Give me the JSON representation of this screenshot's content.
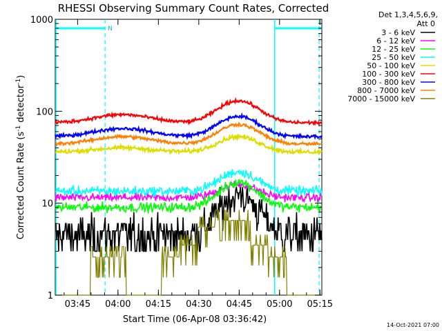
{
  "chart_data": {
    "type": "line",
    "title": "RHESSI Observing Summary Count Rates, Corrected",
    "xlabel": "Start Time (06-Apr-08 03:36:42)",
    "ylabel_main": "Corrected Count Rate (s",
    "ylabel_sup1": "-1",
    "ylabel_mid": " detector",
    "ylabel_sup2": "-1",
    "ylabel_end": ")",
    "yscale": "log",
    "ylim": [
      1,
      1000
    ],
    "xlim_minutes": [
      0,
      99
    ],
    "x_ticks": [
      {
        "label": "03:45",
        "minute": 8.3
      },
      {
        "label": "04:00",
        "minute": 23.3
      },
      {
        "label": "04:15",
        "minute": 38.3
      },
      {
        "label": "04:30",
        "minute": 53.3
      },
      {
        "label": "04:45",
        "minute": 68.3
      },
      {
        "label": "05:00",
        "minute": 83.3
      },
      {
        "label": "05:15",
        "minute": 98.3
      }
    ],
    "y_ticks": [
      {
        "label": "1",
        "value": 1
      },
      {
        "label": "10",
        "value": 10
      },
      {
        "label": "100",
        "value": 100
      },
      {
        "label": "1000",
        "value": 1000
      }
    ],
    "legend_header": [
      "Det 1,3,4,5,6,9,",
      "Att 0"
    ],
    "legend_position": "right",
    "series": [
      {
        "name": "3 - 6 keV",
        "color": "#000000",
        "profile": "flare",
        "base": 4.5,
        "flare_peak": 12,
        "noise": 0.18,
        "quantized": true
      },
      {
        "name": "6 - 12 keV",
        "color": "#ff00ff",
        "profile": "flare",
        "base": 11.5,
        "flare_peak": 16,
        "noise": 0.05
      },
      {
        "name": "12 - 25 keV",
        "color": "#00ff00",
        "profile": "flare",
        "base": 9,
        "flare_peak": 17,
        "noise": 0.06
      },
      {
        "name": "25 - 50 keV",
        "color": "#00ffff",
        "profile": "flare",
        "base": 13.5,
        "flare_peak": 22,
        "noise": 0.06
      },
      {
        "name": "50 - 100 keV",
        "color": "#dddd00",
        "profile": "hump",
        "base": 36,
        "bump1": 40,
        "peak": 53,
        "noise": 0.025
      },
      {
        "name": "100 - 300 keV",
        "color": "#ff0000",
        "profile": "hump",
        "base": 75,
        "bump1": 92,
        "peak": 130,
        "noise": 0.02
      },
      {
        "name": "300 - 800 keV",
        "color": "#0000ff",
        "profile": "hump",
        "base": 53,
        "bump1": 65,
        "peak": 88,
        "noise": 0.02
      },
      {
        "name": "800 - 7000 keV",
        "color": "#ff8000",
        "profile": "hump",
        "base": 44,
        "bump1": 53,
        "peak": 72,
        "noise": 0.02
      },
      {
        "name": "7000 - 15000 keV",
        "color": "#808000",
        "profile": "step",
        "levels": [
          1.0,
          1.0,
          2.6,
          2.6,
          1.0,
          1.0,
          2.6,
          3.5,
          5.5,
          6.5,
          6.5,
          3.5,
          2.6,
          1.0,
          1.0
        ]
      }
    ],
    "annotations": {
      "night_bars": [
        {
          "start_minute": 0,
          "end_minute": 18.5,
          "label": "N"
        },
        {
          "start_minute": 81.5,
          "end_minute": 99,
          "label": ""
        }
      ],
      "dashed_lines_minutes": [
        18.5,
        98
      ],
      "solid_lines_minutes": [
        0,
        81.5
      ]
    },
    "footer_timestamp": "14-Oct-2021 07:00"
  }
}
